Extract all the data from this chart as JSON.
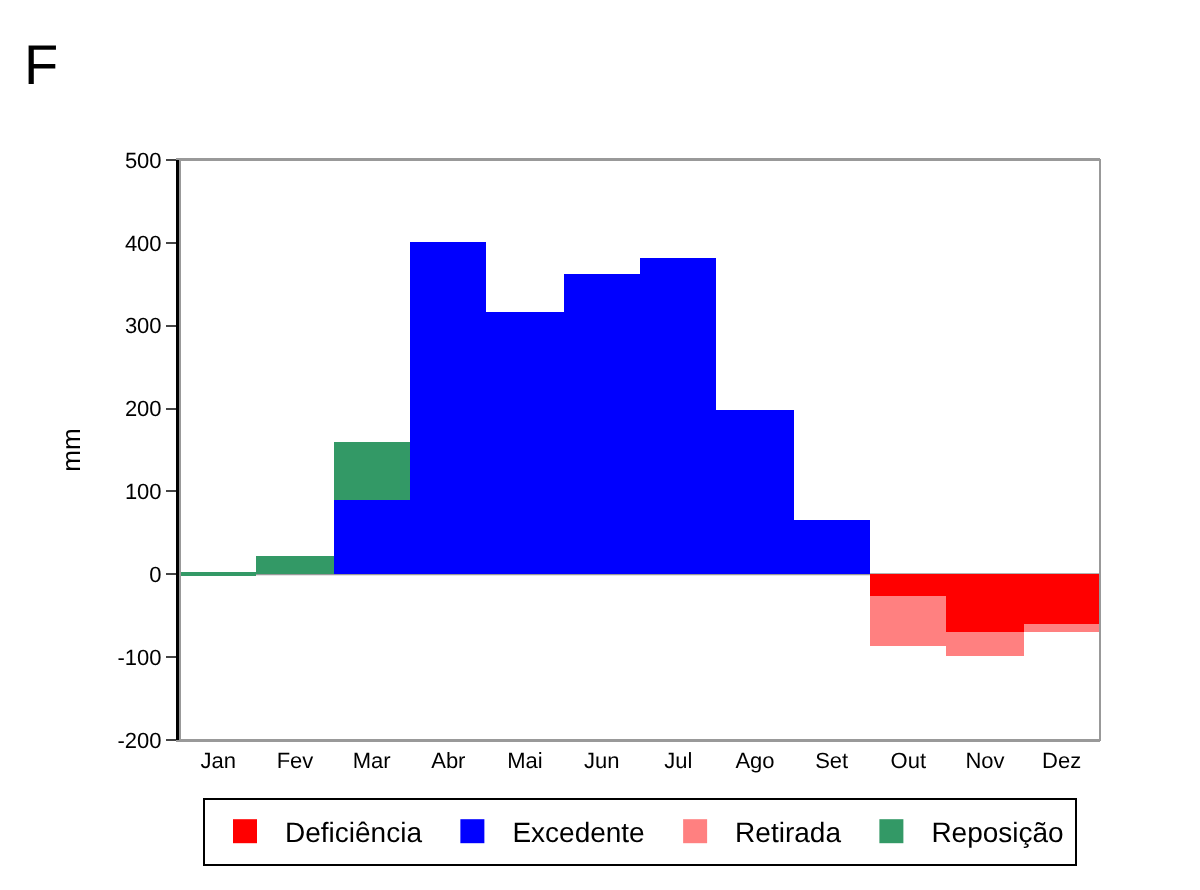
{
  "chart_data": {
    "type": "bar",
    "title": "F",
    "ylabel": "mm",
    "stacked": true,
    "categories": [
      "Jan",
      "Fev",
      "Mar",
      "Abr",
      "Mai",
      "Jun",
      "Jul",
      "Ago",
      "Set",
      "Out",
      "Nov",
      "Dez"
    ],
    "series": [
      {
        "name": "Deficiência",
        "color": "#ff0000",
        "values": [
          null,
          null,
          null,
          null,
          null,
          null,
          null,
          null,
          null,
          -26,
          -70,
          -60
        ]
      },
      {
        "name": "Excedente",
        "color": "#0000ff",
        "values": [
          null,
          null,
          90,
          400,
          317,
          363,
          382,
          198,
          65,
          null,
          null,
          null
        ]
      },
      {
        "name": "Retirada",
        "color": "#ff8080",
        "values": [
          null,
          null,
          null,
          null,
          null,
          null,
          null,
          null,
          null,
          -61,
          -29,
          -10
        ]
      },
      {
        "name": "Reposição",
        "color": "#339966",
        "values": [
          3,
          22,
          70,
          null,
          null,
          null,
          null,
          null,
          null,
          null,
          null,
          null
        ]
      }
    ],
    "ylim": [
      -200,
      500
    ],
    "yticks": [
      -200,
      -100,
      0,
      100,
      200,
      300,
      400,
      500
    ],
    "grid": false,
    "ref_lines": [
      {
        "axis": "y",
        "value": 0,
        "color": "#999999"
      }
    ],
    "legend": "bottom"
  }
}
